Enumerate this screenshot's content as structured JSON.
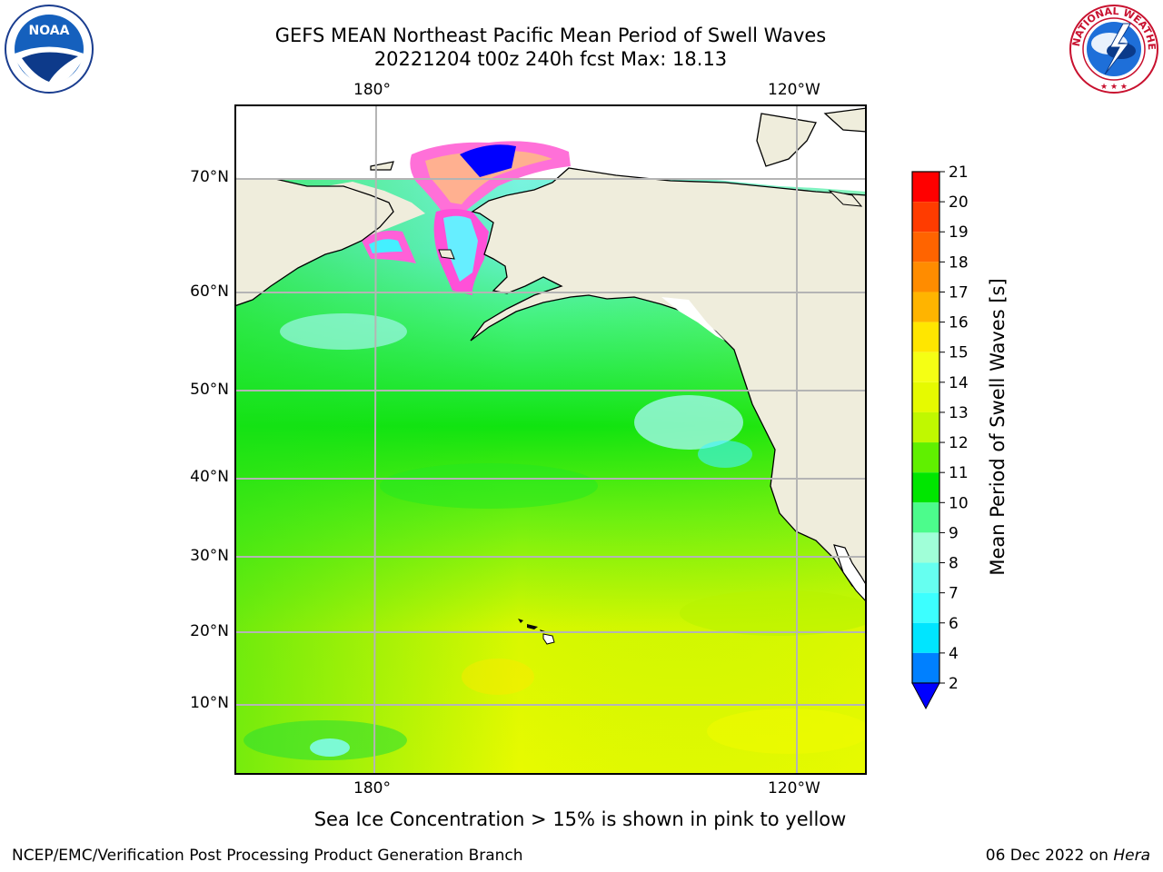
{
  "title": {
    "line1": "GEFS MEAN Northeast Pacific Mean Period of Swell Waves",
    "line2": "20221204 t00z 240h fcst   Max: 18.13"
  },
  "logos": {
    "left": {
      "name": "noaa-logo",
      "text": "NOAA"
    },
    "right": {
      "name": "nws-logo",
      "text": "NATIONAL WEATHER SERVICE"
    }
  },
  "map": {
    "lat_labels": [
      "70°N",
      "60°N",
      "50°N",
      "40°N",
      "30°N",
      "20°N",
      "10°N"
    ],
    "lon_labels_top": [
      "180°",
      "120°W"
    ],
    "lon_labels_bottom": [
      "180°",
      "120°W"
    ],
    "colors": {
      "land": "#efeddc",
      "sea_ice_white": "#ffffff",
      "gridline": "#b0b0b0",
      "coastline": "#000000"
    }
  },
  "colorbar": {
    "label": "Mean Period of Swell Waves [s]",
    "tick_labels": [
      "2",
      "4",
      "6",
      "7",
      "8",
      "9",
      "10",
      "11",
      "12",
      "13",
      "14",
      "15",
      "16",
      "17",
      "18",
      "19",
      "20",
      "21"
    ],
    "bins": [
      {
        "from": 2,
        "to": 4,
        "color": "#0080ff"
      },
      {
        "from": 4,
        "to": 6,
        "color": "#00e5ff"
      },
      {
        "from": 6,
        "to": 7,
        "color": "#3cffff"
      },
      {
        "from": 7,
        "to": 8,
        "color": "#66fff0"
      },
      {
        "from": 8,
        "to": 9,
        "color": "#a0ffd8"
      },
      {
        "from": 9,
        "to": 10,
        "color": "#4cfc8c"
      },
      {
        "from": 10,
        "to": 11,
        "color": "#00e600"
      },
      {
        "from": 11,
        "to": 12,
        "color": "#60f000"
      },
      {
        "from": 12,
        "to": 13,
        "color": "#c0f800"
      },
      {
        "from": 13,
        "to": 14,
        "color": "#e6fa00"
      },
      {
        "from": 14,
        "to": 15,
        "color": "#f5ff14"
      },
      {
        "from": 15,
        "to": 16,
        "color": "#ffe600"
      },
      {
        "from": 16,
        "to": 17,
        "color": "#ffb400"
      },
      {
        "from": 17,
        "to": 18,
        "color": "#ff8c00"
      },
      {
        "from": 18,
        "to": 19,
        "color": "#ff6400"
      },
      {
        "from": 19,
        "to": 20,
        "color": "#ff3c00"
      },
      {
        "from": 20,
        "to": 21,
        "color": "#ff0000"
      }
    ],
    "under_color": "#0000ff",
    "max_value": 18.13
  },
  "footnote": "Sea Ice Concentration > 15% is shown in pink to yellow",
  "credit_left": "NCEP/EMC/Verification Post Processing Product Generation Branch",
  "credit_right_date": "06 Dec 2022 on ",
  "credit_right_host": "Hera"
}
